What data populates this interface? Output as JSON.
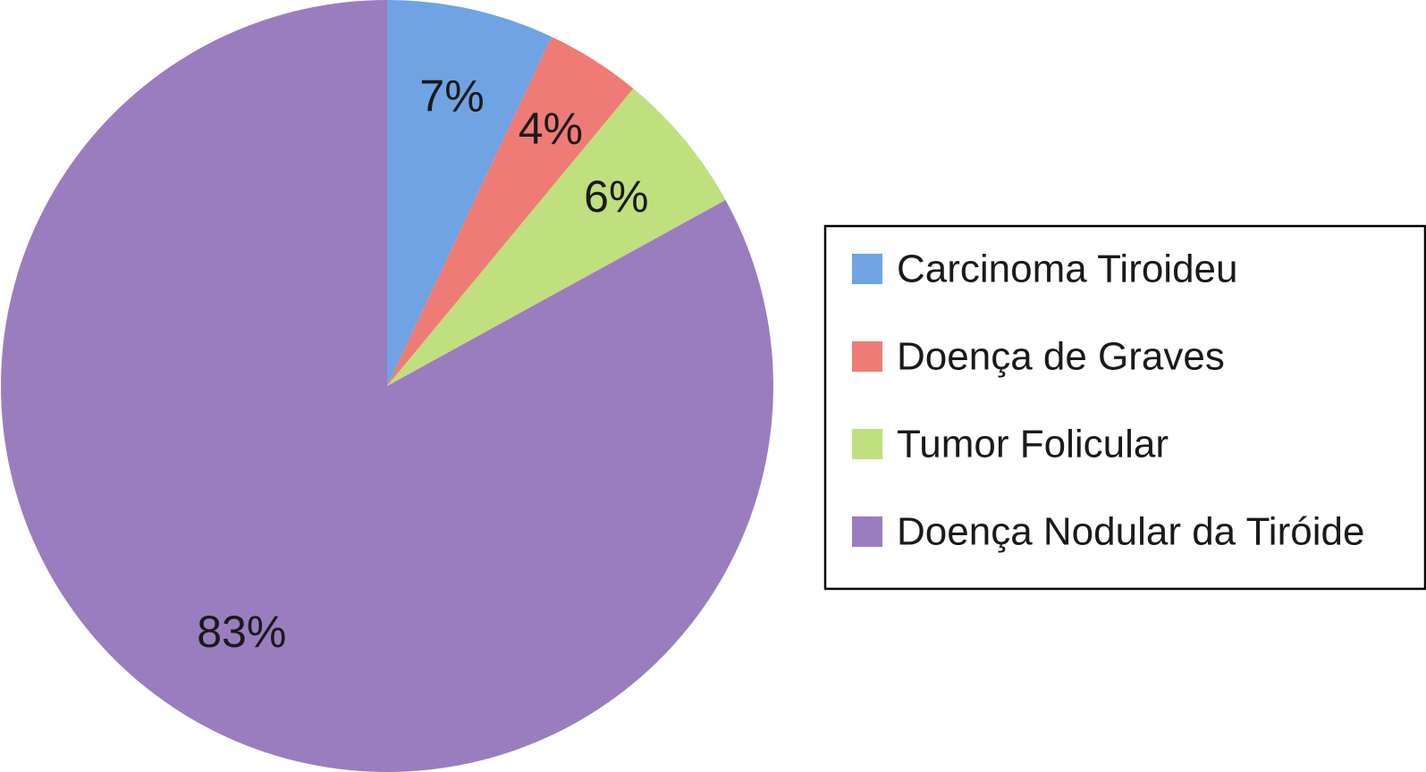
{
  "chart_data": {
    "type": "pie",
    "title": "",
    "start_angle_deg": 0,
    "direction": "clockwise",
    "legend_position": "right",
    "slices": [
      {
        "label": "Carcinoma Tiroideu",
        "value": 7,
        "value_label": "7%",
        "color": "#6fa3e3"
      },
      {
        "label": "Doença de Graves",
        "value": 4,
        "value_label": "4%",
        "color": "#ef7b76"
      },
      {
        "label": "Tumor Folicular",
        "value": 6,
        "value_label": "6%",
        "color": "#c0df7e"
      },
      {
        "label": "Doença Nodular da Tiróide",
        "value": 83,
        "value_label": "83%",
        "color": "#9a7dbf"
      }
    ]
  }
}
